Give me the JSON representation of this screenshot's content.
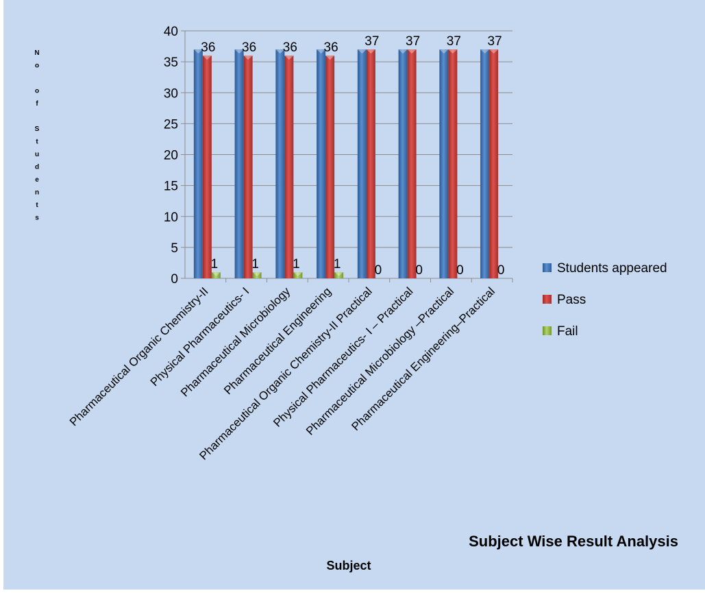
{
  "chart_data": {
    "type": "bar",
    "title": "Subject Wise Result Analysis",
    "xlabel": "Subject",
    "ylabel": "No of Students",
    "ylim": [
      0,
      40
    ],
    "yticks": [
      0,
      5,
      10,
      15,
      20,
      25,
      30,
      35,
      40
    ],
    "grid": true,
    "legend_position": "right",
    "categories": [
      "Pharmaceutical Organic Chemistry-II",
      "Physical Pharmaceutics- I",
      "Pharmaceutical Microbiology",
      "Pharmaceutical Engineering",
      "Pharmaceutical Organic Chemistry-II  Practical",
      "Physical Pharmaceutics- I – Practical",
      "Pharmaceutical Microbiology  –Practical",
      "Pharmaceutical Engineering–Practical"
    ],
    "series": [
      {
        "name": "Students appeared",
        "color": "#4f81bd",
        "values": [
          37,
          37,
          37,
          37,
          37,
          37,
          37,
          37
        ],
        "labels_shown": false
      },
      {
        "name": "Pass",
        "color": "#c0504d",
        "values": [
          36,
          36,
          36,
          36,
          37,
          37,
          37,
          37
        ],
        "labels_shown": true
      },
      {
        "name": "Fail",
        "color": "#9bbb59",
        "values": [
          1,
          1,
          1,
          1,
          0,
          0,
          0,
          0
        ],
        "labels_shown": true
      }
    ]
  }
}
